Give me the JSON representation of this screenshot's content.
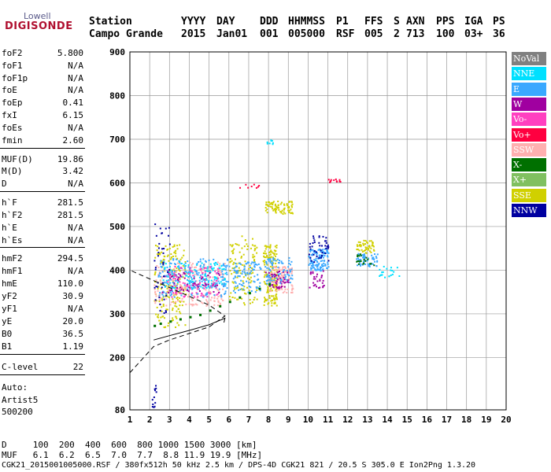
{
  "logo": {
    "top": "Lowell",
    "brand": "DIGISONDE"
  },
  "header": {
    "labels": [
      "Station",
      "YYYY",
      "DAY",
      "DDD",
      "HHMMSS",
      "P1",
      "FFS",
      "S",
      "AXN",
      "PPS",
      "IGA",
      "PS"
    ],
    "values": [
      "Campo Grande",
      "2015",
      "Jan01",
      "001",
      "005000",
      "RSF",
      "005",
      "2",
      "713",
      "100",
      "03+",
      "36"
    ]
  },
  "params": [
    {
      "name": "foF2",
      "value": "5.800"
    },
    {
      "name": "foF1",
      "value": "N/A"
    },
    {
      "name": "foF1p",
      "value": "N/A"
    },
    {
      "name": "foE",
      "value": "N/A"
    },
    {
      "name": "foEp",
      "value": "0.41"
    },
    {
      "name": "fxI",
      "value": "6.15"
    },
    {
      "name": "foEs",
      "value": "N/A"
    },
    {
      "name": "fmin",
      "value": "2.60"
    },
    {
      "name": "MUF(D)",
      "value": "19.86"
    },
    {
      "name": "M(D)",
      "value": "3.42"
    },
    {
      "name": "D",
      "value": "N/A"
    },
    {
      "name": "h`F",
      "value": "281.5"
    },
    {
      "name": "h`F2",
      "value": "281.5"
    },
    {
      "name": "h`E",
      "value": "N/A"
    },
    {
      "name": "h`Es",
      "value": "N/A"
    },
    {
      "name": "hmF2",
      "value": "294.5"
    },
    {
      "name": "hmF1",
      "value": "N/A"
    },
    {
      "name": "hmE",
      "value": "110.0"
    },
    {
      "name": "yF2",
      "value": "30.9"
    },
    {
      "name": "yF1",
      "value": "N/A"
    },
    {
      "name": "yE",
      "value": "20.0"
    },
    {
      "name": "B0",
      "value": "36.5"
    },
    {
      "name": "B1",
      "value": "1.19"
    },
    {
      "name": "C-level",
      "value": "22"
    }
  ],
  "auto": {
    "label": "Auto:",
    "artist": "Artist5",
    "version": "500200"
  },
  "footer": {
    "d_row": "D     100  200  400  600  800 1000 1500 3000 [km]",
    "muf_row": "MUF   6.1  6.2  6.5  7.0  7.7  8.8 11.9 19.9 [MHz]",
    "file_row": "CGK21_2015001005000.RSF / 380fx512h 50 kHz 2.5 km / DPS-4D CGK21 821 / 20.5 S 305.0 E Ion2Png 1.3.20"
  },
  "legend": [
    {
      "label": "NoVal",
      "color": "#808080"
    },
    {
      "label": "NNE",
      "color": "#00e0ff"
    },
    {
      "label": "E",
      "color": "#3aa8ff"
    },
    {
      "label": "W",
      "color": "#a000a0"
    },
    {
      "label": "Vo-",
      "color": "#ff40c0"
    },
    {
      "label": "Vo+",
      "color": "#ff0040"
    },
    {
      "label": "SSW",
      "color": "#ffb0b0"
    },
    {
      "label": "X-",
      "color": "#007000"
    },
    {
      "label": "X+",
      "color": "#80c060"
    },
    {
      "label": "SSE",
      "color": "#d0d000"
    },
    {
      "label": "NNW",
      "color": "#0000a0"
    }
  ],
  "chart_data": {
    "type": "scatter",
    "title": "",
    "xlabel": "",
    "ylabel": "",
    "xlim": [
      1,
      20
    ],
    "ylim": [
      80,
      900
    ],
    "x_ticks": [
      1,
      2,
      3,
      4,
      5,
      6,
      7,
      8,
      9,
      10,
      11,
      12,
      13,
      14,
      15,
      16,
      17,
      18,
      19,
      20
    ],
    "y_ticks": [
      80,
      200,
      300,
      400,
      500,
      600,
      700,
      800,
      900
    ],
    "grid": true,
    "legend_position": "right",
    "clusters": [
      {
        "series": "SSE",
        "x": [
          2.2,
          3.8
        ],
        "y": [
          270,
          460
        ],
        "n": 180
      },
      {
        "series": "SSW",
        "x": [
          2.2,
          5.8
        ],
        "y": [
          320,
          420
        ],
        "n": 220
      },
      {
        "series": "E",
        "x": [
          2.4,
          6.0
        ],
        "y": [
          340,
          430
        ],
        "n": 200
      },
      {
        "series": "NNE",
        "x": [
          2.6,
          5.8
        ],
        "y": [
          360,
          420
        ],
        "n": 120
      },
      {
        "series": "W",
        "x": [
          2.6,
          5.5
        ],
        "y": [
          350,
          400
        ],
        "n": 60
      },
      {
        "series": "Vo-",
        "x": [
          2.8,
          5.5
        ],
        "y": [
          340,
          410
        ],
        "n": 80
      },
      {
        "series": "NNW",
        "x": [
          2.2,
          3.0
        ],
        "y": [
          300,
          510
        ],
        "n": 40
      },
      {
        "series": "SSE",
        "x": [
          6.0,
          7.4
        ],
        "y": [
          320,
          480
        ],
        "n": 120
      },
      {
        "series": "E",
        "x": [
          6.2,
          7.6
        ],
        "y": [
          350,
          420
        ],
        "n": 90
      },
      {
        "series": "SSE",
        "x": [
          7.7,
          8.4
        ],
        "y": [
          320,
          460
        ],
        "n": 160
      },
      {
        "series": "SSE",
        "x": [
          7.8,
          9.2
        ],
        "y": [
          530,
          560
        ],
        "n": 80
      },
      {
        "series": "SSW",
        "x": [
          8.0,
          9.2
        ],
        "y": [
          350,
          410
        ],
        "n": 110
      },
      {
        "series": "W",
        "x": [
          7.8,
          9.0
        ],
        "y": [
          360,
          400
        ],
        "n": 50
      },
      {
        "series": "E",
        "x": [
          7.8,
          9.2
        ],
        "y": [
          370,
          430
        ],
        "n": 80
      },
      {
        "series": "E",
        "x": [
          10.0,
          11.0
        ],
        "y": [
          400,
          450
        ],
        "n": 130
      },
      {
        "series": "NNW",
        "x": [
          10.0,
          11.0
        ],
        "y": [
          420,
          480
        ],
        "n": 40
      },
      {
        "series": "W",
        "x": [
          10.0,
          10.8
        ],
        "y": [
          360,
          400
        ],
        "n": 30
      },
      {
        "series": "SSE",
        "x": [
          12.4,
          13.3
        ],
        "y": [
          440,
          470
        ],
        "n": 50
      },
      {
        "series": "E",
        "x": [
          12.4,
          13.5
        ],
        "y": [
          410,
          440
        ],
        "n": 60
      },
      {
        "series": "X-",
        "x": [
          12.4,
          13.4
        ],
        "y": [
          410,
          440
        ],
        "n": 20
      },
      {
        "series": "NNE",
        "x": [
          13.5,
          14.6
        ],
        "y": [
          385,
          410
        ],
        "n": 20
      },
      {
        "series": "Vo+",
        "x": [
          11.0,
          11.6
        ],
        "y": [
          603,
          610
        ],
        "n": 12
      },
      {
        "series": "Vo+",
        "x": [
          6.5,
          7.5
        ],
        "y": [
          590,
          600
        ],
        "n": 8
      },
      {
        "series": "NNE",
        "x": [
          7.9,
          8.2
        ],
        "y": [
          690,
          700
        ],
        "n": 8
      },
      {
        "series": "NNW",
        "x": [
          2.1,
          2.3
        ],
        "y": [
          80,
          140
        ],
        "n": 12
      }
    ],
    "x_trace": {
      "series": "X-",
      "x": [
        2.2,
        2.5,
        3.0,
        3.5,
        4.0,
        4.5,
        5.0,
        5.5,
        6.0,
        6.5,
        7.0,
        7.5,
        8.0
      ],
      "y": [
        275,
        280,
        285,
        290,
        295,
        300,
        310,
        320,
        330,
        340,
        350,
        360,
        370
      ]
    },
    "profile_solid": {
      "x": [
        2.2,
        3.0,
        4.0,
        5.0,
        5.8,
        5.75
      ],
      "y": [
        240,
        250,
        262,
        275,
        290,
        280
      ]
    },
    "profile_dashed": {
      "x": [
        1.0,
        2.2,
        3.0,
        4.0,
        5.0,
        5.8,
        5.0,
        4.0,
        3.0,
        2.0,
        1.0
      ],
      "y": [
        165,
        225,
        240,
        255,
        270,
        295,
        320,
        340,
        360,
        380,
        400
      ]
    }
  }
}
